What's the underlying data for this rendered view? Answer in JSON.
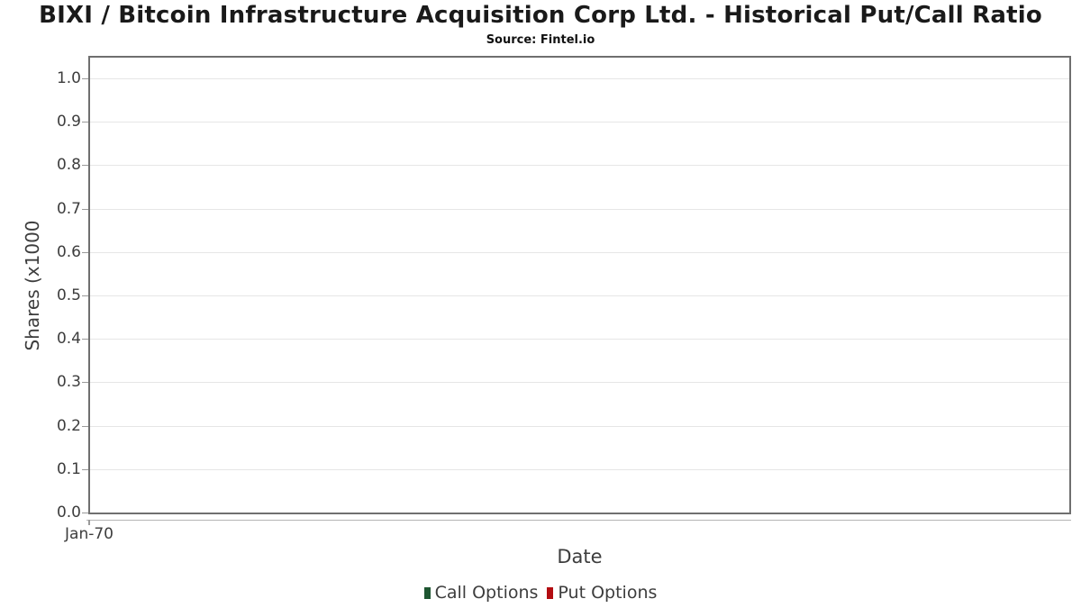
{
  "chart_data": {
    "type": "line",
    "title": "BIXI / Bitcoin Infrastructure Acquisition Corp Ltd. - Historical Put/Call Ratio",
    "subtitle": "Source: Fintel.io",
    "xlabel": "Date",
    "ylabel": "Shares (x1000",
    "x_tick_labels": [
      "Jan-70"
    ],
    "y_tick_labels": [
      "0.0",
      "0.1",
      "0.2",
      "0.3",
      "0.4",
      "0.5",
      "0.6",
      "0.7",
      "0.8",
      "0.9",
      "1.0"
    ],
    "ylim": [
      0.0,
      1.0
    ],
    "grid": "horizontal",
    "legend_position": "bottom",
    "series": [
      {
        "name": "Call Options",
        "color": "#1e5631",
        "values": []
      },
      {
        "name": "Put Options",
        "color": "#b30d11",
        "values": []
      }
    ]
  }
}
